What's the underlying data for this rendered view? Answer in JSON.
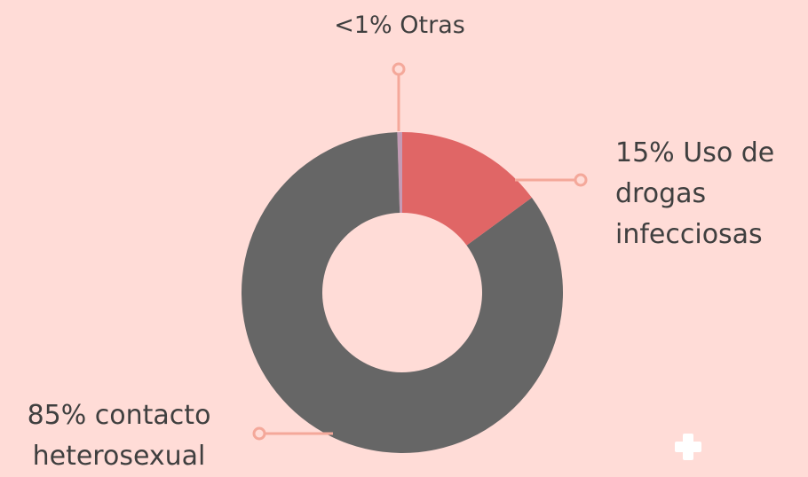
{
  "chart_data": {
    "type": "donut",
    "categories": [
      "Uso de drogas infecciosas",
      "contacto heterosexual",
      "Otras"
    ],
    "values": [
      15,
      85,
      0.5
    ],
    "value_labels": [
      "15%",
      "85%",
      "<1%"
    ],
    "colors": [
      "#e06666",
      "#666666",
      "#c49bb5"
    ]
  }
}
